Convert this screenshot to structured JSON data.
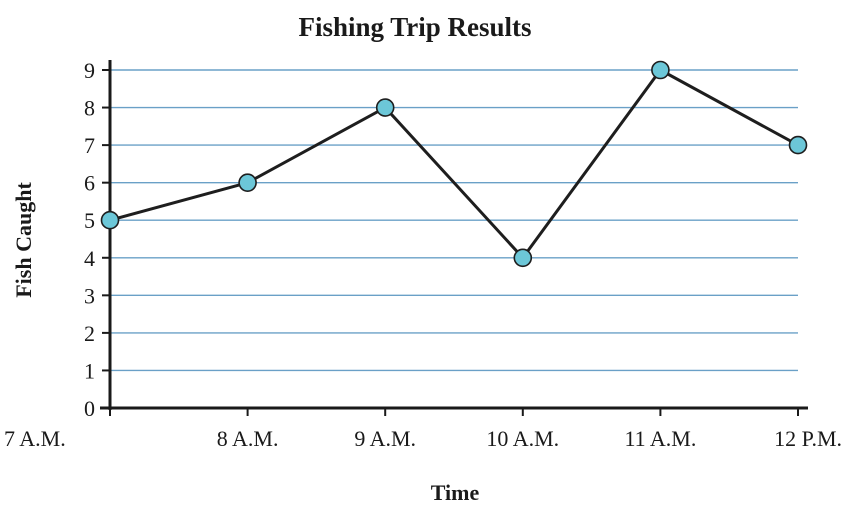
{
  "chart_data": {
    "type": "line",
    "title": "Fishing Trip Results",
    "xlabel": "Time",
    "ylabel": "Fish Caught",
    "categories": [
      "7 A.M.",
      "8 A.M.",
      "9 A.M.",
      "10 A.M.",
      "11 A.M.",
      "12 P.M."
    ],
    "values": [
      5,
      6,
      8,
      4,
      9,
      7
    ],
    "ylim": [
      0,
      9
    ],
    "yticks": [
      "0",
      "1",
      "2",
      "3",
      "4",
      "5",
      "6",
      "7",
      "8",
      "9"
    ],
    "grid": true,
    "colors": {
      "line": "#1e1e1e",
      "marker": "#6cc7d8",
      "grid": "#6aa0c7"
    }
  }
}
